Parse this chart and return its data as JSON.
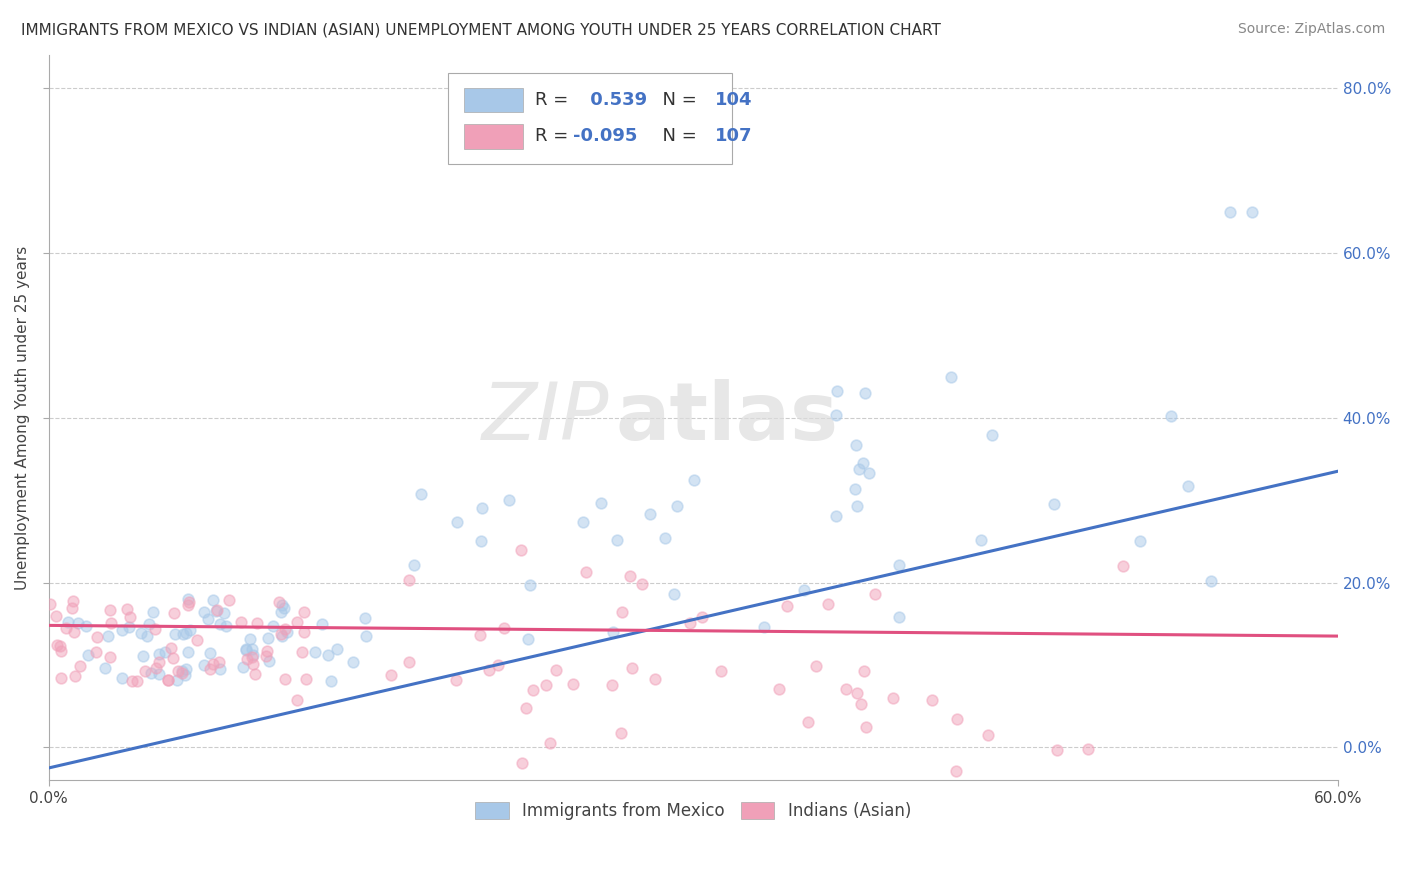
{
  "title": "IMMIGRANTS FROM MEXICO VS INDIAN (ASIAN) UNEMPLOYMENT AMONG YOUTH UNDER 25 YEARS CORRELATION CHART",
  "source": "Source: ZipAtlas.com",
  "ylabel_label": "Unemployment Among Youth under 25 years",
  "legend_label1": "Immigrants from Mexico",
  "legend_label2": "Indians (Asian)",
  "R1": 0.539,
  "N1": 104,
  "R2": -0.095,
  "N2": 107,
  "color_mexico": "#A8C8E8",
  "color_india": "#F0A0B8",
  "color_line_mexico": "#4472C4",
  "color_line_india": "#E05080",
  "background": "#FFFFFF",
  "xlim": [
    0.0,
    0.6
  ],
  "ylim": [
    -0.04,
    0.84
  ],
  "grid_color": "#CCCCCC",
  "scatter_alpha": 0.5,
  "scatter_size": 60,
  "line1_x0": 0.0,
  "line1_y0": -0.025,
  "line1_x1": 0.6,
  "line1_y1": 0.335,
  "line2_x0": 0.0,
  "line2_y0": 0.148,
  "line2_x1": 0.6,
  "line2_y1": 0.135,
  "ytick_vals": [
    0.0,
    0.2,
    0.4,
    0.6,
    0.8
  ],
  "ytick_right_labels": [
    "0.0%",
    "20.0%",
    "40.0%",
    "60.0%",
    "80.0%"
  ]
}
